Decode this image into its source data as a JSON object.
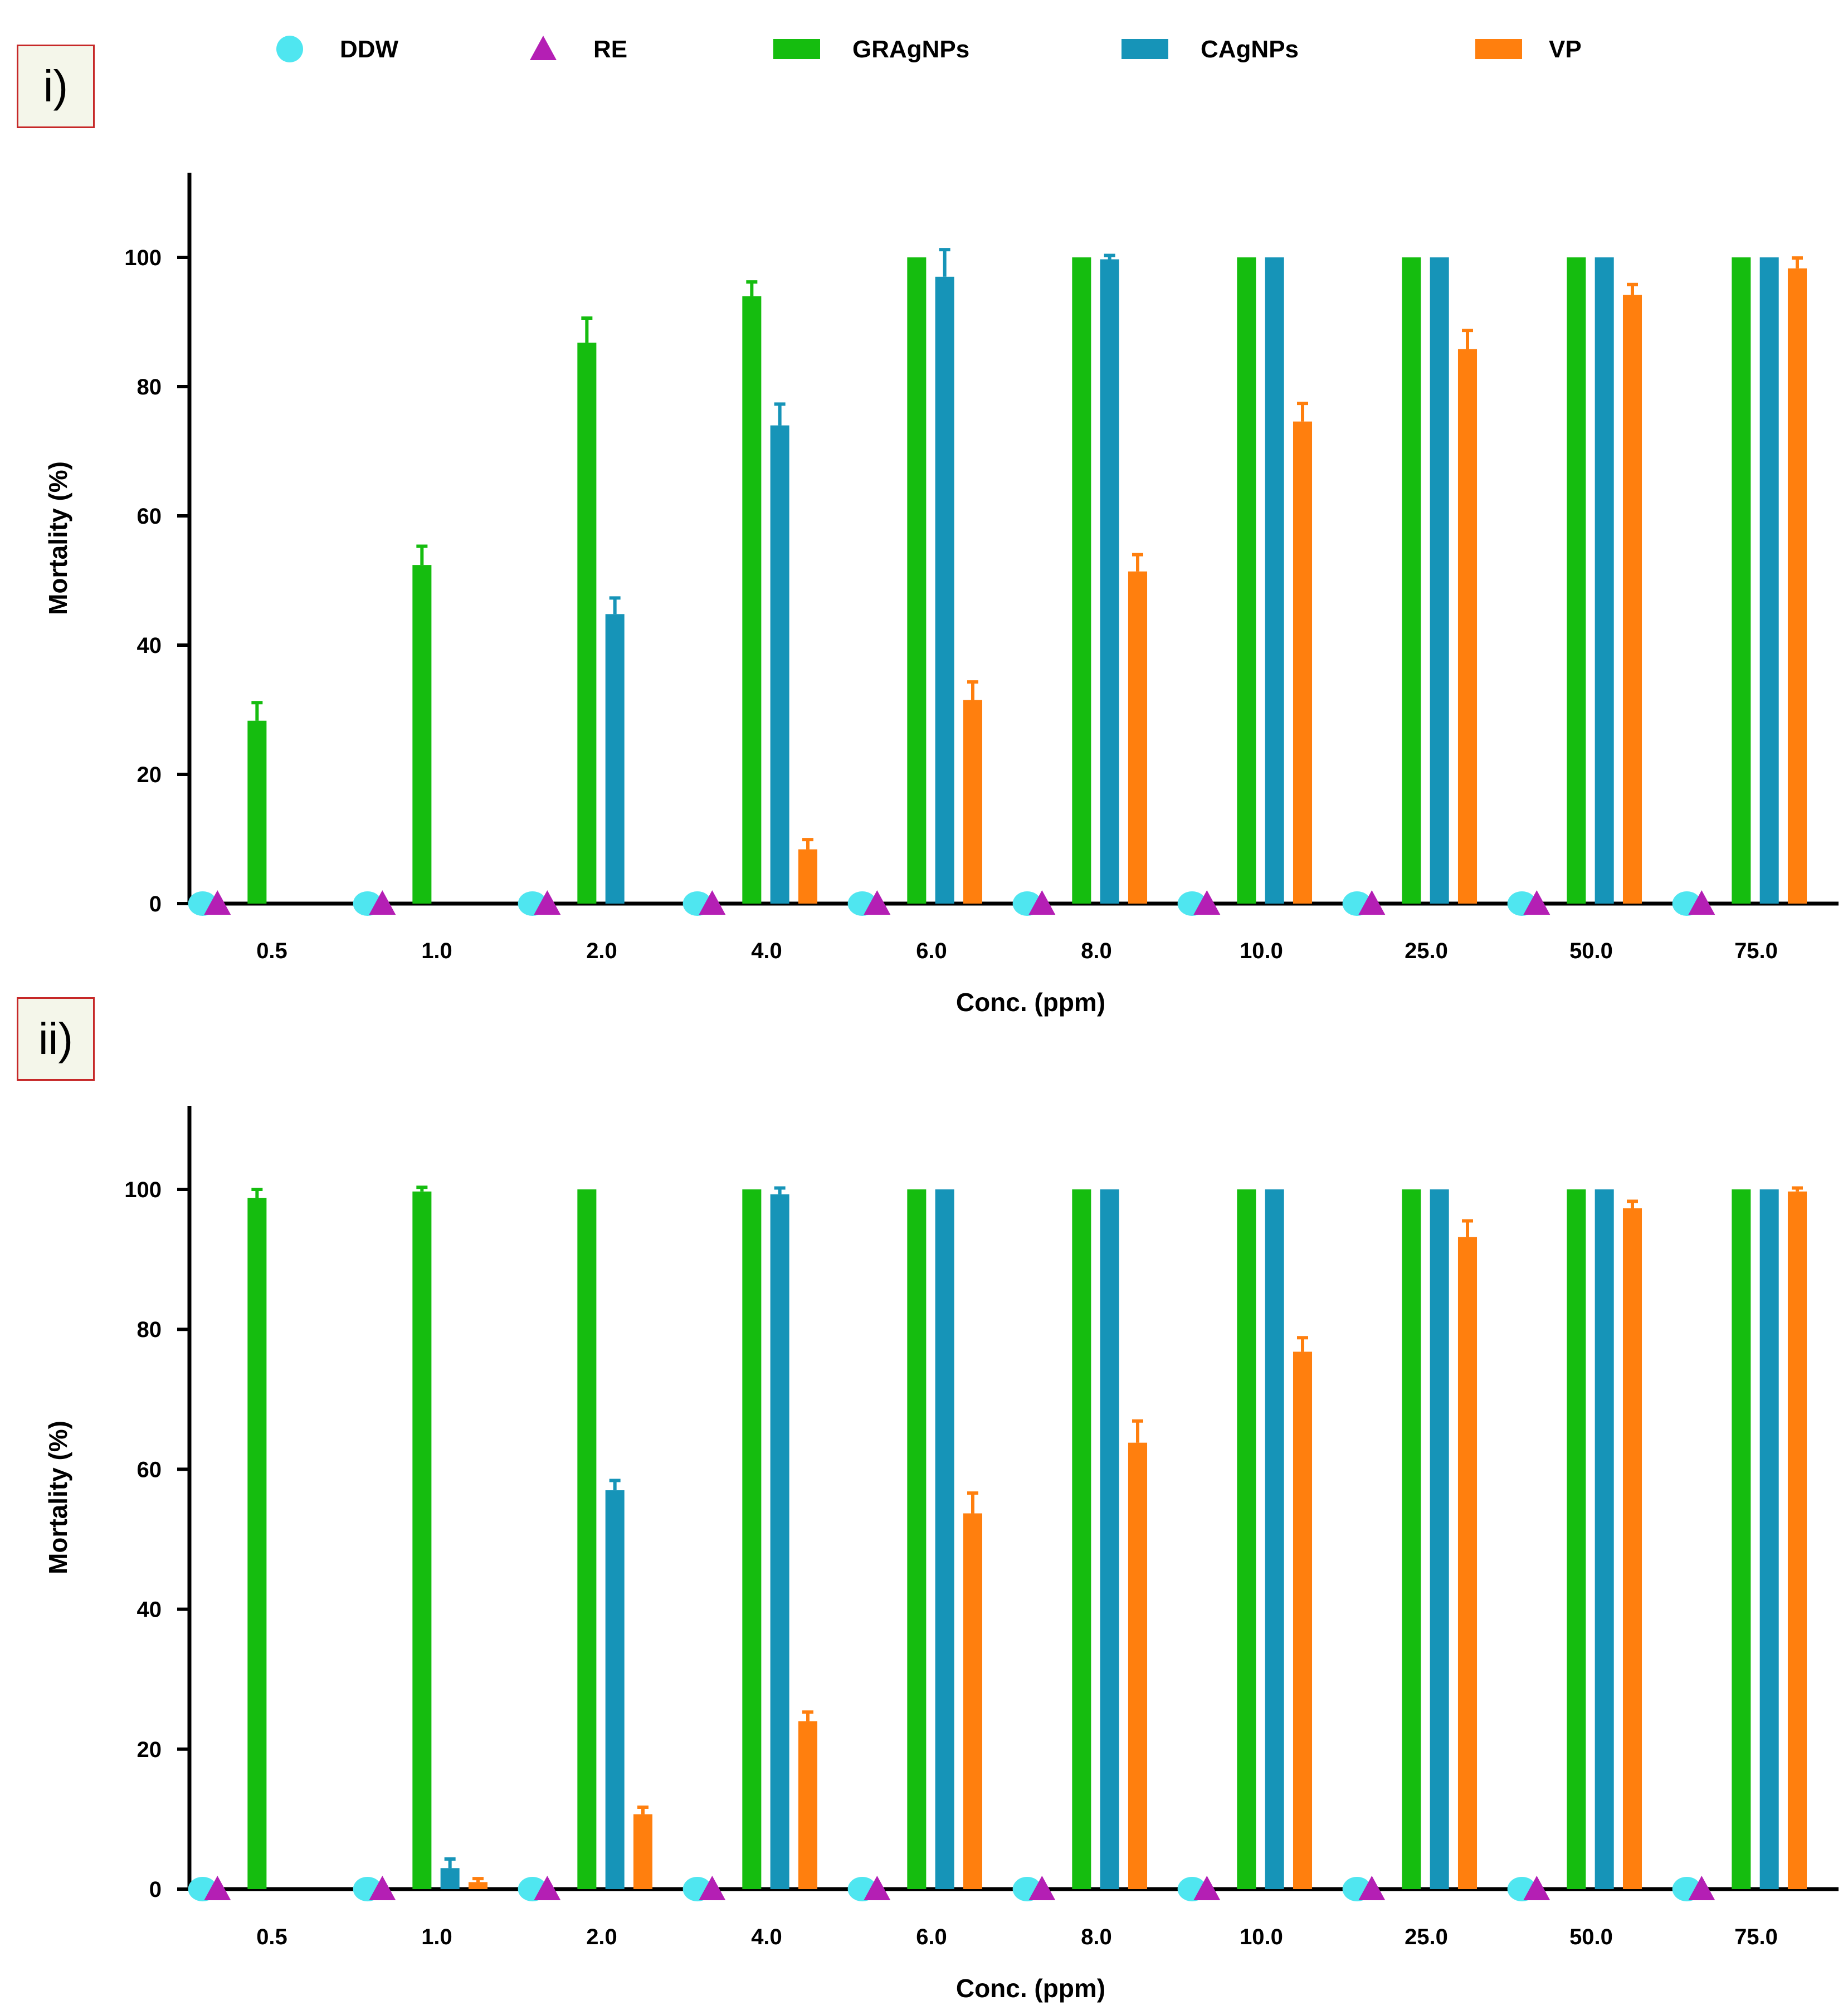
{
  "panels": [
    {
      "label": "i)"
    },
    {
      "label": "ii)"
    }
  ],
  "colors": {
    "DDW": "#4fe6f0",
    "RE": "#b41fb4",
    "GRAgNPs": "#15bd0f",
    "CAgNPs": "#1694b8",
    "VP": "#ff7f0e",
    "axis": "#000000"
  },
  "legend": [
    {
      "name": "DDW",
      "marker": "circle"
    },
    {
      "name": "RE",
      "marker": "triangle"
    },
    {
      "name": "GRAgNPs",
      "marker": "bar"
    },
    {
      "name": "CAgNPs",
      "marker": "bar"
    },
    {
      "name": "VP",
      "marker": "bar"
    }
  ],
  "chart_data": [
    {
      "type": "bar",
      "panel": "i)",
      "title": "",
      "xlabel": "Conc. (ppm)",
      "ylabel": "Mortality (%)",
      "ylim": [
        0,
        110
      ],
      "yticks": [
        0,
        20,
        40,
        60,
        80,
        100
      ],
      "categories": [
        "0.5",
        "1.0",
        "2.0",
        "4.0",
        "6.0",
        "8.0",
        "10.0",
        "25.0",
        "50.0",
        "75.0"
      ],
      "series": [
        {
          "name": "DDW",
          "kind": "point",
          "values": [
            0,
            0,
            0,
            0,
            0,
            0,
            0,
            0,
            0,
            0
          ],
          "errors": [
            0,
            0,
            0,
            0,
            0,
            0,
            0,
            0,
            0,
            0
          ]
        },
        {
          "name": "RE",
          "kind": "point",
          "values": [
            0,
            0,
            0,
            0,
            0,
            0,
            0,
            0,
            0,
            0
          ],
          "errors": [
            0,
            0,
            0,
            0,
            0,
            0,
            0,
            0,
            0,
            0
          ]
        },
        {
          "name": "GRAgNPs",
          "kind": "bar",
          "values": [
            28.3,
            52.4,
            86.8,
            94.0,
            100,
            100,
            100,
            100,
            100,
            100
          ],
          "errors": [
            2.8,
            2.9,
            3.8,
            2.2,
            0,
            0,
            0,
            0,
            0,
            0
          ]
        },
        {
          "name": "CAgNPs",
          "kind": "bar",
          "values": [
            0,
            0,
            44.8,
            74.0,
            97.0,
            99.7,
            100,
            100,
            100,
            100
          ],
          "errors": [
            0,
            0,
            2.5,
            3.3,
            4.2,
            0.6,
            0,
            0,
            0,
            0
          ]
        },
        {
          "name": "VP",
          "kind": "bar",
          "values": [
            0,
            0,
            0,
            8.4,
            31.5,
            51.4,
            74.6,
            85.8,
            94.2,
            98.3
          ],
          "errors": [
            0,
            0,
            0,
            1.5,
            2.8,
            2.6,
            2.8,
            2.9,
            1.6,
            1.6
          ]
        }
      ]
    },
    {
      "type": "bar",
      "panel": "ii)",
      "title": "",
      "xlabel": "Conc. (ppm)",
      "ylabel": "Mortality (%)",
      "ylim": [
        0,
        112
      ],
      "yticks": [
        0,
        20,
        40,
        60,
        80,
        100
      ],
      "categories": [
        "0.5",
        "1.0",
        "2.0",
        "4.0",
        "6.0",
        "8.0",
        "10.0",
        "25.0",
        "50.0",
        "75.0"
      ],
      "series": [
        {
          "name": "DDW",
          "kind": "point",
          "values": [
            0,
            0,
            0,
            0,
            0,
            0,
            0,
            0,
            0,
            0
          ],
          "errors": [
            0,
            0,
            0,
            0,
            0,
            0,
            0,
            0,
            0,
            0
          ]
        },
        {
          "name": "RE",
          "kind": "point",
          "values": [
            0,
            0,
            0,
            0,
            0,
            0,
            0,
            0,
            0,
            0
          ],
          "errors": [
            0,
            0,
            0,
            0,
            0,
            0,
            0,
            0,
            0,
            0
          ]
        },
        {
          "name": "GRAgNPs",
          "kind": "bar",
          "values": [
            98.8,
            99.7,
            100,
            100,
            100,
            100,
            100,
            100,
            100,
            100
          ],
          "errors": [
            1.2,
            0.6,
            0,
            0,
            0,
            0,
            0,
            0,
            0,
            0
          ]
        },
        {
          "name": "CAgNPs",
          "kind": "bar",
          "values": [
            0,
            3.0,
            57.0,
            99.3,
            100,
            100,
            100,
            100,
            100,
            100
          ],
          "errors": [
            0,
            1.3,
            1.4,
            0.9,
            0,
            0,
            0,
            0,
            0,
            0
          ]
        },
        {
          "name": "VP",
          "kind": "bar",
          "values": [
            0,
            1.0,
            10.7,
            24.0,
            53.7,
            63.8,
            76.8,
            93.2,
            97.3,
            99.7
          ],
          "errors": [
            0,
            0.5,
            1.0,
            1.3,
            2.9,
            3.1,
            2.0,
            2.3,
            1.0,
            0.5
          ]
        }
      ]
    }
  ]
}
